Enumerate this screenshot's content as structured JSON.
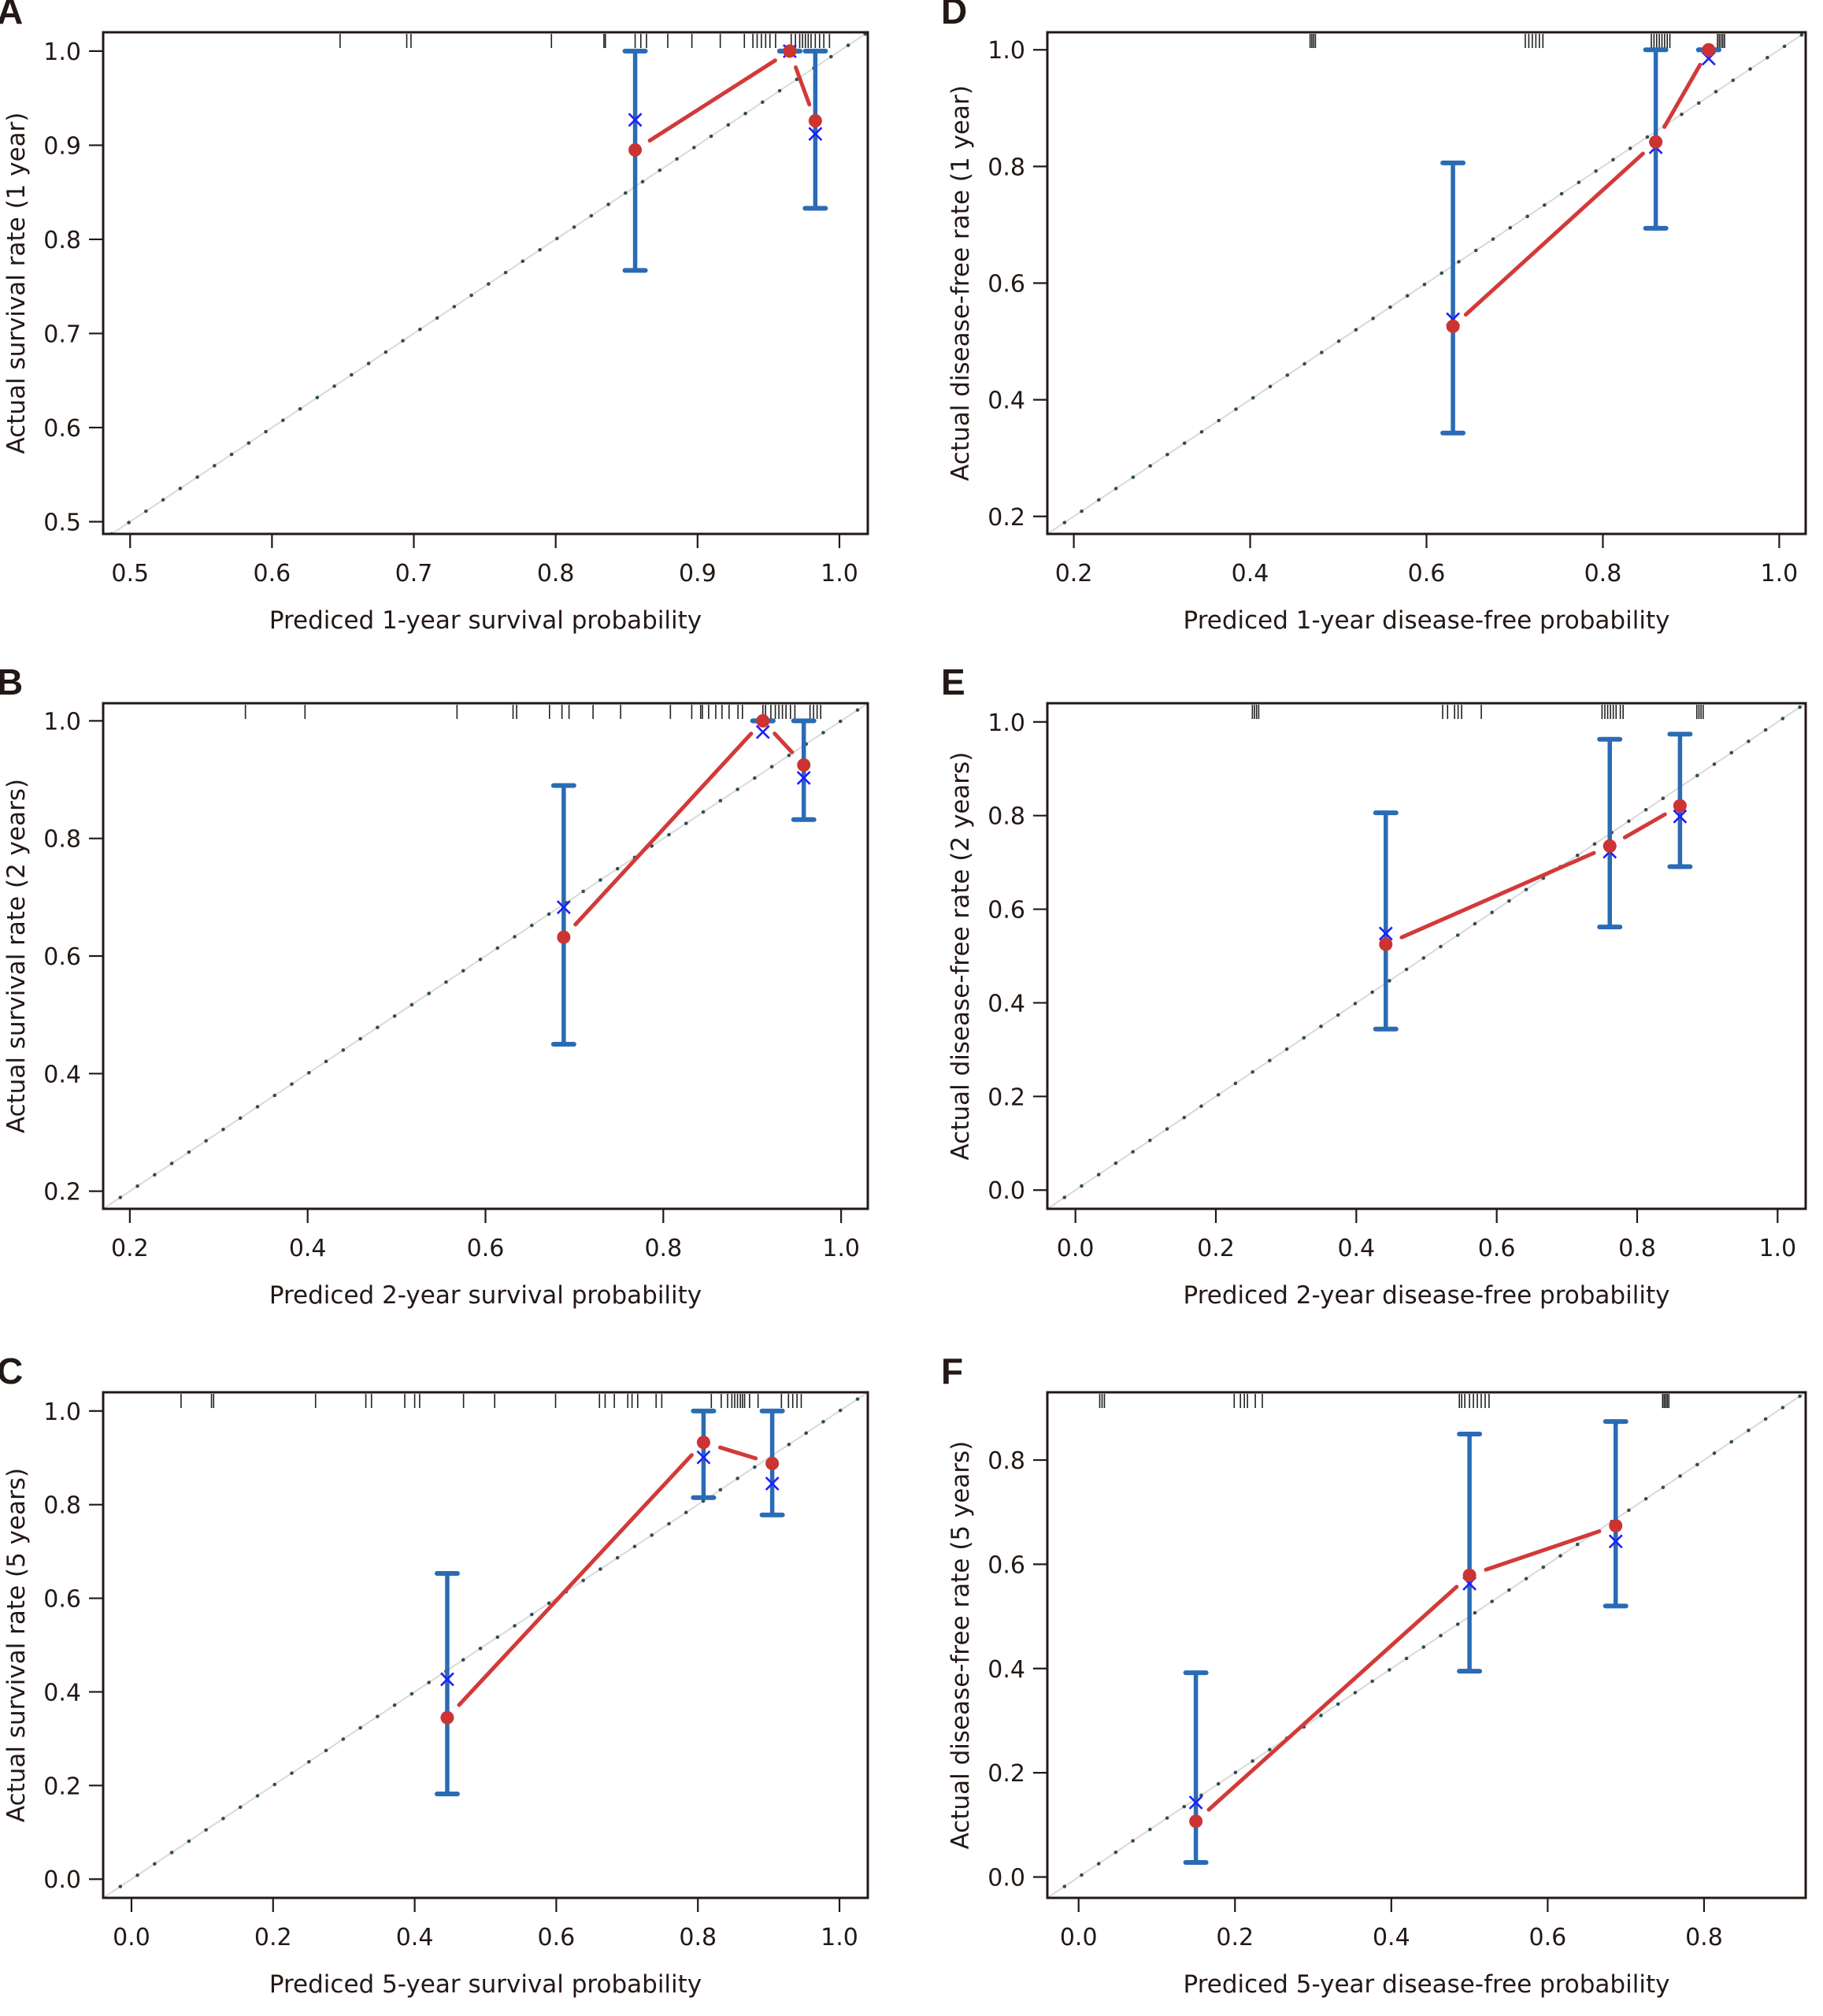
{
  "figure": {
    "description": "Calibration curves: actual vs predicted survival / disease-free probability",
    "colors": {
      "observed_line": "#d23a3a",
      "observed_point": "#cc3333",
      "km_marker": "#1f1fff",
      "error_bar": "#2a6bb5",
      "diagonal_dots": "#2e4f4f",
      "diagonal_line": "#d9d9d9",
      "rug": "#222222",
      "axis": "#231815"
    }
  },
  "chart_data": [
    {
      "id": "A",
      "type": "scatter",
      "panel_label": "A",
      "xlabel": "Prediced 1-year survival probability",
      "ylabel": "Actual survival rate (1 year)",
      "xlim": [
        0.481,
        1.02
      ],
      "ylim": [
        0.487,
        1.02
      ],
      "xticks": [
        0.5,
        0.6,
        0.7,
        0.8,
        0.9,
        1.0
      ],
      "xtick_labels": [
        "0.5",
        "0.6",
        "0.7",
        "0.8",
        "0.9",
        "1.0"
      ],
      "yticks": [
        0.5,
        0.6,
        0.7,
        0.8,
        0.9,
        1.0
      ],
      "ytick_labels": [
        "0.5",
        "0.6",
        "0.7",
        "0.8",
        "0.9",
        "1.0"
      ],
      "grid": false,
      "reference_line": "y = x (dotted)",
      "predicted": [
        0.856,
        0.965,
        0.983
      ],
      "observed": [
        0.895,
        1.0,
        0.926
      ],
      "km_estimate": [
        0.927,
        1.0,
        0.912
      ],
      "ci_lower": [
        0.767,
        1.0,
        0.833
      ],
      "ci_upper": [
        1.0,
        1.0,
        1.0
      ],
      "rug": [
        0.648,
        0.695,
        0.698,
        0.797,
        0.834,
        0.835,
        0.856,
        0.86,
        0.864,
        0.879,
        0.896,
        0.916,
        0.933,
        0.939,
        0.942,
        0.945,
        0.948,
        0.951,
        0.955,
        0.966,
        0.969,
        0.972,
        0.974,
        0.976,
        0.978,
        0.98,
        0.983,
        0.986,
        0.989,
        0.993
      ]
    },
    {
      "id": "B",
      "type": "scatter",
      "panel_label": "B",
      "xlabel": "Prediced 2-year survival probability",
      "ylabel": "Actual survival rate (2 years)",
      "xlim": [
        0.17,
        1.03
      ],
      "ylim": [
        0.17,
        1.03
      ],
      "xticks": [
        0.2,
        0.4,
        0.6,
        0.8,
        1.0
      ],
      "xtick_labels": [
        "0.2",
        "0.4",
        "0.6",
        "0.8",
        "1.0"
      ],
      "yticks": [
        0.2,
        0.4,
        0.6,
        0.8,
        1.0
      ],
      "ytick_labels": [
        "0.2",
        "0.4",
        "0.6",
        "0.8",
        "1.0"
      ],
      "grid": false,
      "reference_line": "y = x (dotted)",
      "predicted": [
        0.688,
        0.912,
        0.958
      ],
      "observed": [
        0.632,
        1.0,
        0.925
      ],
      "km_estimate": [
        0.683,
        0.981,
        0.903
      ],
      "ci_lower": [
        0.45,
        1.0,
        0.832
      ],
      "ci_upper": [
        0.89,
        1.0,
        1.0
      ],
      "rug": [
        0.33,
        0.397,
        0.568,
        0.631,
        0.635,
        0.672,
        0.686,
        0.694,
        0.721,
        0.752,
        0.808,
        0.832,
        0.842,
        0.844,
        0.851,
        0.859,
        0.866,
        0.874,
        0.884,
        0.889,
        0.912,
        0.915,
        0.921,
        0.926,
        0.93,
        0.934,
        0.938,
        0.943,
        0.948,
        0.965,
        0.969,
        0.973,
        0.977
      ]
    },
    {
      "id": "C",
      "type": "scatter",
      "panel_label": "C",
      "xlabel": "Prediced 5-year survival probability",
      "ylabel": "Actual survival rate (5 years)",
      "xlim": [
        -0.04,
        1.04
      ],
      "ylim": [
        -0.04,
        1.04
      ],
      "xticks": [
        0.0,
        0.2,
        0.4,
        0.6,
        0.8,
        1.0
      ],
      "xtick_labels": [
        "0.0",
        "0.2",
        "0.4",
        "0.6",
        "0.8",
        "1.0"
      ],
      "yticks": [
        0.0,
        0.2,
        0.4,
        0.6,
        0.8,
        1.0
      ],
      "ytick_labels": [
        "0.0",
        "0.2",
        "0.4",
        "0.6",
        "0.8",
        "1.0"
      ],
      "grid": false,
      "reference_line": "y = x (dotted)",
      "predicted": [
        0.446,
        0.808,
        0.905
      ],
      "observed": [
        0.345,
        0.933,
        0.888
      ],
      "km_estimate": [
        0.427,
        0.901,
        0.845
      ],
      "ci_lower": [
        0.182,
        0.815,
        0.778
      ],
      "ci_upper": [
        0.653,
        1.0,
        1.0
      ],
      "rug": [
        0.07,
        0.113,
        0.116,
        0.26,
        0.331,
        0.339,
        0.386,
        0.4,
        0.407,
        0.469,
        0.513,
        0.599,
        0.661,
        0.669,
        0.682,
        0.701,
        0.707,
        0.715,
        0.741,
        0.749,
        0.819,
        0.833,
        0.842,
        0.848,
        0.852,
        0.856,
        0.86,
        0.863,
        0.866,
        0.873,
        0.885,
        0.918,
        0.928,
        0.934,
        0.94,
        0.946
      ]
    },
    {
      "id": "D",
      "type": "scatter",
      "panel_label": "D",
      "xlabel": "Prediced 1-year disease-free probability",
      "ylabel": "Actual disease-free rate (1 year)",
      "xlim": [
        0.17,
        1.03
      ],
      "ylim": [
        0.17,
        1.03
      ],
      "xticks": [
        0.2,
        0.4,
        0.6,
        0.8,
        1.0
      ],
      "xtick_labels": [
        "0.2",
        "0.4",
        "0.6",
        "0.8",
        "1.0"
      ],
      "yticks": [
        0.2,
        0.4,
        0.6,
        0.8,
        1.0
      ],
      "ytick_labels": [
        "0.2",
        "0.4",
        "0.6",
        "0.8",
        "1.0"
      ],
      "grid": false,
      "reference_line": "y = x (dotted)",
      "predicted": [
        0.63,
        0.86,
        0.92
      ],
      "observed": [
        0.526,
        0.842,
        1.0
      ],
      "km_estimate": [
        0.538,
        0.833,
        0.985
      ],
      "ci_lower": [
        0.343,
        0.694,
        1.0
      ],
      "ci_upper": [
        0.806,
        1.0,
        1.0
      ],
      "rug": [
        0.468,
        0.47,
        0.472,
        0.474,
        0.712,
        0.716,
        0.72,
        0.724,
        0.728,
        0.732,
        0.855,
        0.858,
        0.861,
        0.864,
        0.867,
        0.87,
        0.873,
        0.876,
        0.93,
        0.932,
        0.934,
        0.936,
        0.938
      ]
    },
    {
      "id": "E",
      "type": "scatter",
      "panel_label": "E",
      "xlabel": "Prediced 2-year disease-free probability",
      "ylabel": "Actual disease-free rate (2 years)",
      "xlim": [
        -0.04,
        1.04
      ],
      "ylim": [
        -0.04,
        1.04
      ],
      "xticks": [
        0.0,
        0.2,
        0.4,
        0.6,
        0.8,
        1.0
      ],
      "xtick_labels": [
        "0.0",
        "0.2",
        "0.4",
        "0.6",
        "0.8",
        "1.0"
      ],
      "yticks": [
        0.0,
        0.2,
        0.4,
        0.6,
        0.8,
        1.0
      ],
      "ytick_labels": [
        "0.0",
        "0.2",
        "0.4",
        "0.6",
        "0.8",
        "1.0"
      ],
      "grid": false,
      "reference_line": "y = x (dotted)",
      "predicted": [
        0.442,
        0.761,
        0.861
      ],
      "observed": [
        0.525,
        0.735,
        0.821
      ],
      "km_estimate": [
        0.548,
        0.723,
        0.798
      ],
      "ci_lower": [
        0.344,
        0.562,
        0.691
      ],
      "ci_upper": [
        0.806,
        0.963,
        0.974
      ],
      "rug": [
        0.252,
        0.255,
        0.258,
        0.261,
        0.523,
        0.53,
        0.54,
        0.545,
        0.55,
        0.578,
        0.75,
        0.754,
        0.758,
        0.762,
        0.766,
        0.77,
        0.776,
        0.78,
        0.885,
        0.888,
        0.891,
        0.894
      ]
    },
    {
      "id": "F",
      "type": "scatter",
      "panel_label": "F",
      "xlabel": "Prediced 5-year disease-free probability",
      "ylabel": "Actual disease-free rate (5 years)",
      "xlim": [
        -0.04,
        0.93
      ],
      "ylim": [
        -0.04,
        0.93
      ],
      "xticks": [
        0.0,
        0.2,
        0.4,
        0.6,
        0.8
      ],
      "xtick_labels": [
        "0.0",
        "0.2",
        "0.4",
        "0.6",
        "0.8"
      ],
      "yticks": [
        0.0,
        0.2,
        0.4,
        0.6,
        0.8
      ],
      "ytick_labels": [
        "0.0",
        "0.2",
        "0.4",
        "0.6",
        "0.8"
      ],
      "grid": false,
      "reference_line": "y = x (dotted)",
      "predicted": [
        0.15,
        0.5,
        0.687
      ],
      "observed": [
        0.107,
        0.579,
        0.674
      ],
      "km_estimate": [
        0.143,
        0.563,
        0.644
      ],
      "ci_lower": [
        0.028,
        0.395,
        0.52
      ],
      "ci_upper": [
        0.392,
        0.85,
        0.874
      ],
      "rug": [
        0.027,
        0.03,
        0.033,
        0.199,
        0.207,
        0.212,
        0.216,
        0.226,
        0.235,
        0.487,
        0.49,
        0.494,
        0.5,
        0.505,
        0.51,
        0.515,
        0.52,
        0.525,
        0.747,
        0.749,
        0.751,
        0.753,
        0.755
      ]
    }
  ]
}
